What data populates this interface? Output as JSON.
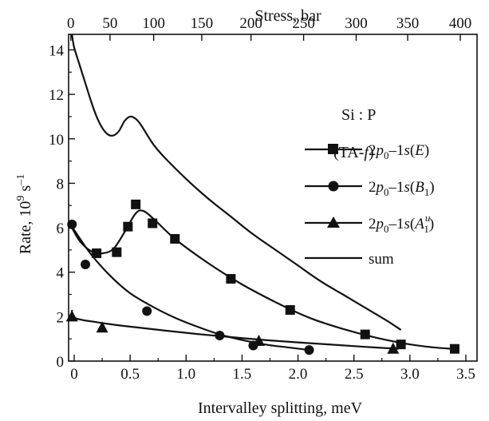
{
  "chart_data": {
    "type": "line",
    "xlabel": "Intervalley splitting, meV",
    "ylabel": "Rate, 10",
    "ylabel_exponent": "9",
    "ylabel_unit": "s",
    "ylabel_unit_exponent": "–1",
    "top_xlabel": "Stress, bar",
    "xlim": [
      -0.05,
      3.6
    ],
    "ylim": [
      0,
      14.7
    ],
    "x_ticks": [
      0,
      0.5,
      1.0,
      1.5,
      2.0,
      2.5,
      3.0,
      3.5
    ],
    "x_tick_labels": [
      "0",
      "0.5",
      "1.0",
      "1.5",
      "2.0",
      "2.5",
      "3.0",
      "3.5"
    ],
    "y_ticks": [
      0,
      2,
      4,
      6,
      8,
      10,
      12,
      14
    ],
    "y_tick_labels": [
      "0",
      "2",
      "4",
      "6",
      "8",
      "10",
      "12",
      "14"
    ],
    "top_ticks_at_x": [
      -0.05,
      0.39,
      0.8,
      1.23,
      1.95,
      2.48,
      2.98,
      3.47
    ],
    "top_tick_labels": [
      "0",
      "50",
      "100",
      "150",
      "200",
      "250",
      "300",
      "350",
      "400"
    ],
    "top_tick_positions_x": [
      -0.03,
      0.32,
      0.71,
      1.14,
      1.58,
      2.05,
      2.52,
      2.98,
      3.45
    ],
    "annotation_material": "Si : P",
    "annotation_mode": "(TA-",
    "annotation_mode_italic": "f",
    "annotation_mode_close": ")",
    "grid": false,
    "legend_position": "right",
    "series": [
      {
        "name": "2p0–1s(E)",
        "marker": "square",
        "points": [
          {
            "x": 0.2,
            "y": 4.85
          },
          {
            "x": 0.38,
            "y": 4.9
          },
          {
            "x": 0.48,
            "y": 6.05
          },
          {
            "x": 0.55,
            "y": 7.05
          },
          {
            "x": 0.7,
            "y": 6.2
          },
          {
            "x": 0.9,
            "y": 5.5
          },
          {
            "x": 1.4,
            "y": 3.7
          },
          {
            "x": 1.93,
            "y": 2.3
          },
          {
            "x": 2.6,
            "y": 1.2
          },
          {
            "x": 2.92,
            "y": 0.75
          },
          {
            "x": 3.4,
            "y": 0.55
          }
        ],
        "fit": [
          [
            -0.02,
            6.0
          ],
          [
            0.05,
            5.4
          ],
          [
            0.15,
            4.95
          ],
          [
            0.25,
            4.85
          ],
          [
            0.35,
            5.05
          ],
          [
            0.45,
            5.8
          ],
          [
            0.55,
            6.65
          ],
          [
            0.62,
            6.75
          ],
          [
            0.72,
            6.35
          ],
          [
            0.9,
            5.5
          ],
          [
            1.2,
            4.4
          ],
          [
            1.5,
            3.45
          ],
          [
            1.8,
            2.65
          ],
          [
            2.1,
            1.95
          ],
          [
            2.4,
            1.45
          ],
          [
            2.7,
            1.05
          ],
          [
            3.0,
            0.75
          ],
          [
            3.2,
            0.62
          ],
          [
            3.38,
            0.55
          ]
        ]
      },
      {
        "name": "2p0–1s(B1)",
        "marker": "circle",
        "points": [
          {
            "x": -0.02,
            "y": 6.15
          },
          {
            "x": 0.1,
            "y": 4.35
          },
          {
            "x": 0.65,
            "y": 2.25
          },
          {
            "x": 1.3,
            "y": 1.15
          },
          {
            "x": 1.6,
            "y": 0.7
          },
          {
            "x": 2.1,
            "y": 0.5
          }
        ],
        "fit": [
          [
            -0.02,
            6.05
          ],
          [
            0.1,
            5.15
          ],
          [
            0.2,
            4.5
          ],
          [
            0.35,
            3.7
          ],
          [
            0.5,
            3.05
          ],
          [
            0.7,
            2.45
          ],
          [
            0.9,
            1.95
          ],
          [
            1.1,
            1.55
          ],
          [
            1.3,
            1.2
          ],
          [
            1.5,
            0.95
          ],
          [
            1.7,
            0.75
          ],
          [
            1.9,
            0.62
          ],
          [
            2.1,
            0.5
          ]
        ]
      },
      {
        "name": "2p0–1s(A1u)",
        "marker": "triangle",
        "points": [
          {
            "x": -0.02,
            "y": 2.0
          },
          {
            "x": 0.25,
            "y": 1.5
          },
          {
            "x": 1.65,
            "y": 0.9
          },
          {
            "x": 2.85,
            "y": 0.55
          }
        ],
        "fit": [
          [
            -0.02,
            2.3
          ],
          [
            0.0,
            1.95
          ],
          [
            0.2,
            1.75
          ],
          [
            0.5,
            1.55
          ],
          [
            0.8,
            1.38
          ],
          [
            1.1,
            1.22
          ],
          [
            1.4,
            1.08
          ],
          [
            1.7,
            0.95
          ],
          [
            2.0,
            0.84
          ],
          [
            2.3,
            0.74
          ],
          [
            2.6,
            0.64
          ],
          [
            2.9,
            0.55
          ]
        ]
      },
      {
        "name": "sum",
        "marker": "none",
        "fit": [
          [
            -0.02,
            14.7
          ],
          [
            0.0,
            14.1
          ],
          [
            0.05,
            13.3
          ],
          [
            0.1,
            12.5
          ],
          [
            0.15,
            11.7
          ],
          [
            0.2,
            11.0
          ],
          [
            0.25,
            10.5
          ],
          [
            0.3,
            10.2
          ],
          [
            0.35,
            10.15
          ],
          [
            0.4,
            10.35
          ],
          [
            0.45,
            10.8
          ],
          [
            0.5,
            11.0
          ],
          [
            0.55,
            10.9
          ],
          [
            0.6,
            10.6
          ],
          [
            0.7,
            9.8
          ],
          [
            0.8,
            9.2
          ],
          [
            1.0,
            8.2
          ],
          [
            1.2,
            7.3
          ],
          [
            1.4,
            6.5
          ],
          [
            1.6,
            5.7
          ],
          [
            1.8,
            5.0
          ],
          [
            2.0,
            4.3
          ],
          [
            2.2,
            3.6
          ],
          [
            2.4,
            3.0
          ],
          [
            2.6,
            2.4
          ],
          [
            2.8,
            1.8
          ],
          [
            2.92,
            1.4
          ]
        ]
      }
    ]
  }
}
